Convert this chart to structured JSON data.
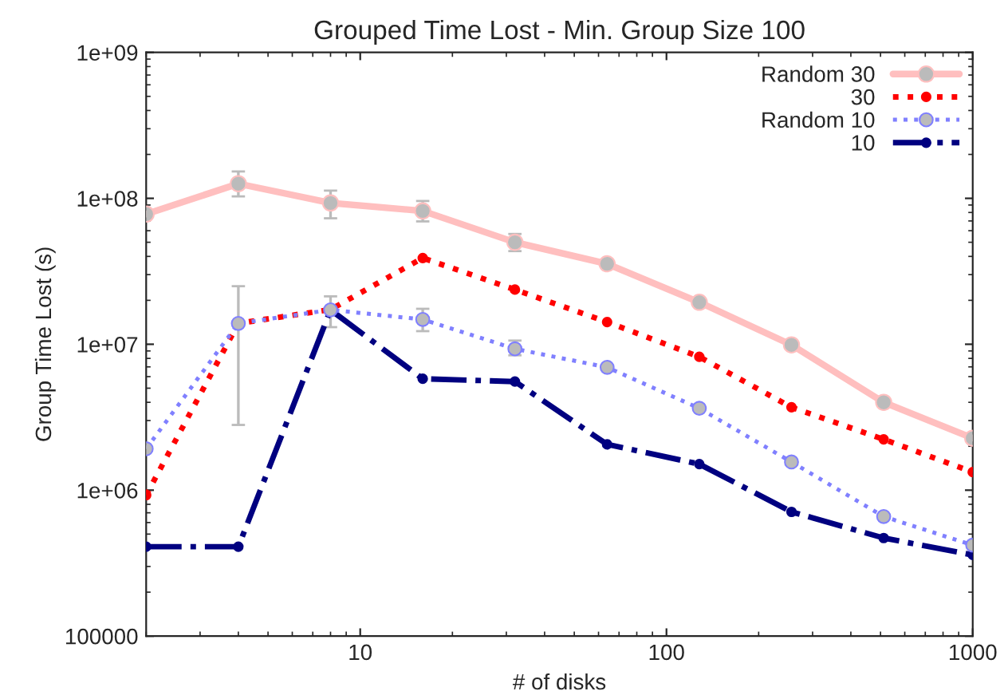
{
  "chart_data": {
    "type": "line",
    "title": "Grouped Time Lost - Min. Group Size 100",
    "xlabel": "# of disks",
    "ylabel": "Group Time Lost (s)",
    "x": [
      2,
      4,
      8,
      16,
      32,
      64,
      128,
      256,
      512,
      1000
    ],
    "log": "xy",
    "xlim": [
      2,
      1000
    ],
    "xticks": [
      10,
      100,
      1000
    ],
    "ylim": [
      100000,
      1000000000
    ],
    "yticks": [
      100000,
      {
        "value": 1000000,
        "label": "1e+06"
      },
      {
        "value": 10000000,
        "label": "1e+07"
      },
      {
        "value": 100000000,
        "label": "1e+08"
      },
      {
        "value": 1000000000,
        "label": "1e+09"
      }
    ],
    "legend": "top right",
    "marker": "circle",
    "grid": false,
    "series": [
      {
        "name": "Random 30",
        "color": "#ffbfbf",
        "line_style": "solid",
        "values": [
          78000000,
          126000000,
          93000000,
          82000000,
          50000000,
          35600000,
          19400000,
          9900000,
          4000000,
          2270000
        ],
        "errors": [
          null,
          [
            103000000,
            153000000
          ],
          [
            73000000,
            113000000
          ],
          [
            69500000,
            96000000
          ],
          [
            43500000,
            57000000
          ],
          null,
          null,
          null,
          null,
          null
        ]
      },
      {
        "name": "30",
        "color": "#ff0000",
        "line_style": "dotted",
        "values": [
          925000,
          13900000,
          17300000,
          39000000,
          23700000,
          14200000,
          8200000,
          3700000,
          2230000,
          1330000
        ]
      },
      {
        "name": "Random 10",
        "color": "#8080ff",
        "line_style": "dotted",
        "values": [
          1920000,
          13900000,
          17200000,
          14800000,
          9300000,
          6950000,
          3640000,
          1560000,
          660000,
          420000
        ],
        "errors": [
          null,
          [
            2800000,
            25000000
          ],
          [
            13100000,
            21300000
          ],
          [
            12300000,
            17500000
          ],
          [
            8400000,
            10600000
          ],
          null,
          null,
          null,
          null,
          null
        ]
      },
      {
        "name": "10",
        "color": "#000080",
        "line_style": "dashed",
        "values": [
          410000,
          410000,
          17200000,
          5800000,
          5550000,
          2060000,
          1510000,
          710000,
          470000,
          360000
        ]
      }
    ]
  }
}
